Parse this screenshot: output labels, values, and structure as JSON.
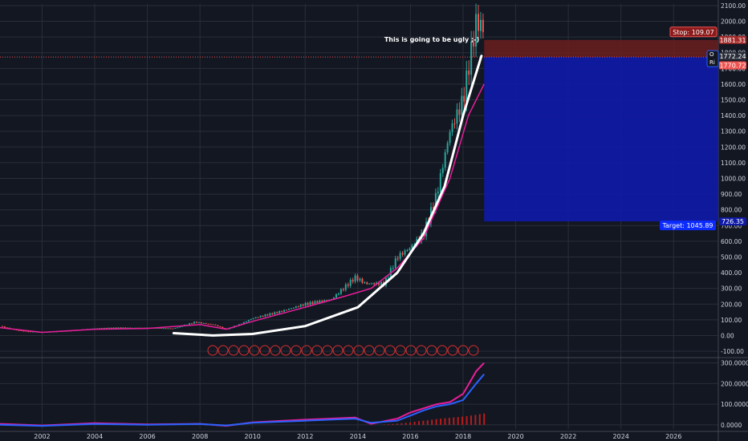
{
  "chart_data": [
    {
      "type": "candlestick",
      "title": "",
      "y_axis": {
        "ticks": [
          "2100.00",
          "2000.00",
          "1900.00",
          "1800.00",
          "1700.00",
          "1600.00",
          "1500.00",
          "1400.00",
          "1300.00",
          "1200.00",
          "1100.00",
          "1000.00",
          "900.00",
          "800.00",
          "700.00",
          "600.00",
          "500.00",
          "400.00",
          "300.00",
          "200.00",
          "100.00",
          "0.00",
          "-100.00"
        ],
        "range": [
          -110,
          2110
        ]
      },
      "x_axis": {
        "ticks": [
          "2002",
          "2004",
          "2006",
          "2008",
          "2010",
          "2012",
          "2014",
          "2016",
          "2018",
          "2020",
          "2022",
          "2024",
          "2026"
        ],
        "range": [
          2000.4,
          2027.7
        ]
      },
      "price_points": [
        [
          2000.4,
          60
        ],
        [
          2001.0,
          35
        ],
        [
          2001.5,
          25
        ],
        [
          2002.0,
          22
        ],
        [
          2003.0,
          30
        ],
        [
          2004.0,
          45
        ],
        [
          2005.0,
          50
        ],
        [
          2006.0,
          48
        ],
        [
          2007.0,
          45
        ],
        [
          2007.8,
          85
        ],
        [
          2008.5,
          70
        ],
        [
          2009.0,
          40
        ],
        [
          2009.5,
          70
        ],
        [
          2010.0,
          110
        ],
        [
          2011.0,
          150
        ],
        [
          2012.0,
          200
        ],
        [
          2013.0,
          230
        ],
        [
          2013.9,
          370
        ],
        [
          2014.3,
          330
        ],
        [
          2015.0,
          330
        ],
        [
          2015.5,
          500
        ],
        [
          2016.0,
          560
        ],
        [
          2016.5,
          650
        ],
        [
          2017.0,
          900
        ],
        [
          2017.5,
          1300
        ],
        [
          2018.0,
          1500
        ],
        [
          2018.5,
          2000
        ],
        [
          2018.8,
          1950
        ]
      ],
      "moving_average_points": [
        [
          2000.4,
          50
        ],
        [
          2002.0,
          20
        ],
        [
          2004.0,
          40
        ],
        [
          2006.0,
          45
        ],
        [
          2008.0,
          70
        ],
        [
          2009.0,
          40
        ],
        [
          2010.0,
          90
        ],
        [
          2012.0,
          180
        ],
        [
          2013.5,
          250
        ],
        [
          2014.5,
          300
        ],
        [
          2015.5,
          430
        ],
        [
          2016.5,
          620
        ],
        [
          2017.5,
          1000
        ],
        [
          2018.2,
          1400
        ],
        [
          2018.8,
          1600
        ]
      ],
      "curve_points": [
        [
          2007.0,
          15
        ],
        [
          2008.5,
          0
        ],
        [
          2010.0,
          10
        ],
        [
          2012.0,
          60
        ],
        [
          2014.0,
          180
        ],
        [
          2015.5,
          400
        ],
        [
          2016.5,
          650
        ],
        [
          2017.3,
          950
        ],
        [
          2018.0,
          1400
        ],
        [
          2018.7,
          1780
        ]
      ],
      "annotation": "This is going to be ugly ;-)",
      "position": {
        "entry": 1772.24,
        "stop_price": 1881.31,
        "stop_label": "Stop: 109.07",
        "target_price": 726.35,
        "target_label": "Target: 1045.89",
        "current_price": 1770.72
      },
      "axis_labels": {
        "stop_level": "1881.31",
        "entry_level": "1772.24",
        "current_level": "1770.72",
        "target_level": "726.35",
        "partial_label_top": "O",
        "partial_label_bottom": "Ri"
      },
      "colors": {
        "background": "#131722",
        "grid": "#2a2e39",
        "up": "#26a69a",
        "down": "#ef5350",
        "moving_average": "#e91e9b",
        "curve": "#ffffff",
        "stop_zone": "#6b1d1d",
        "target_zone": "#0f1aa8",
        "target_box": "#0b2bff",
        "stop_box": "#8b1a1a"
      }
    },
    {
      "type": "line",
      "title": "",
      "y_axis": {
        "ticks": [
          "300.0000",
          "200.0000",
          "100.0000",
          "0.0000"
        ],
        "range": [
          -20,
          310
        ]
      },
      "series": [
        {
          "name": "",
          "color": "#e91e9b",
          "points": [
            [
              2000.4,
              5
            ],
            [
              2002,
              -3
            ],
            [
              2004,
              8
            ],
            [
              2006,
              2
            ],
            [
              2008,
              5
            ],
            [
              2009,
              -5
            ],
            [
              2010,
              12
            ],
            [
              2012,
              25
            ],
            [
              2013.9,
              35
            ],
            [
              2014.5,
              5
            ],
            [
              2015.5,
              30
            ],
            [
              2016,
              60
            ],
            [
              2016.5,
              80
            ],
            [
              2017,
              100
            ],
            [
              2017.5,
              110
            ],
            [
              2018,
              150
            ],
            [
              2018.5,
              260
            ],
            [
              2018.8,
              300
            ]
          ]
        },
        {
          "name": "",
          "color": "#2962ff",
          "points": [
            [
              2000.4,
              0
            ],
            [
              2002,
              -5
            ],
            [
              2004,
              4
            ],
            [
              2006,
              0
            ],
            [
              2008,
              4
            ],
            [
              2009,
              -3
            ],
            [
              2010,
              10
            ],
            [
              2012,
              20
            ],
            [
              2013.9,
              30
            ],
            [
              2014.5,
              10
            ],
            [
              2015.5,
              20
            ],
            [
              2016,
              45
            ],
            [
              2016.5,
              70
            ],
            [
              2017,
              90
            ],
            [
              2017.5,
              100
            ],
            [
              2018,
              120
            ],
            [
              2018.5,
              200
            ],
            [
              2018.8,
              245
            ]
          ]
        }
      ],
      "histogram": {
        "color": "#b71c1c",
        "x_range": [
          2015.0,
          2018.8
        ],
        "values": [
          2,
          3,
          4,
          6,
          8,
          10,
          12,
          15,
          18,
          20,
          22,
          25,
          28,
          30,
          32,
          34,
          36,
          38,
          40,
          42,
          45,
          48,
          52,
          55
        ]
      }
    }
  ]
}
